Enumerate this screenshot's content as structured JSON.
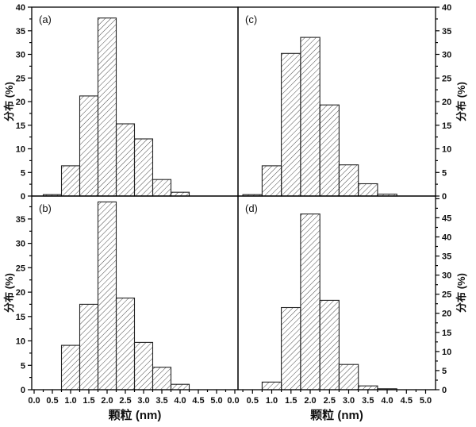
{
  "figure": {
    "background": "#ffffff",
    "axis_color": "#000000",
    "bar_outline_color": "#222222",
    "hatch_color": "#4a4a4a",
    "x_axis_title": "颗粒 (nm)",
    "y_axis_title": "分布 (%)"
  },
  "chart_data": [
    {
      "panel": "a",
      "panel_label": "(a)",
      "type": "bar",
      "bin_width": 0.5,
      "bin_centers": [
        0.5,
        1.0,
        1.5,
        2.0,
        2.5,
        3.0,
        3.5,
        4.0
      ],
      "values": [
        0.3,
        6.4,
        21.2,
        37.7,
        15.3,
        12.1,
        3.5,
        0.8
      ],
      "ylabel": "分布 (%)",
      "yaxis_side": "left",
      "ylim": [
        0,
        40
      ],
      "ytick_labels": [
        0,
        5,
        10,
        15,
        20,
        25,
        30,
        35,
        40
      ],
      "xlim": [
        0,
        5.6
      ],
      "show_x_labels": false,
      "xtick_labels": []
    },
    {
      "panel": "b",
      "panel_label": "(b)",
      "type": "bar",
      "bin_width": 0.5,
      "bin_centers": [
        1.0,
        1.5,
        2.0,
        2.5,
        3.0,
        3.5,
        4.0
      ],
      "values": [
        9.1,
        17.5,
        38.5,
        18.8,
        9.7,
        4.6,
        1.1
      ],
      "ylabel": "分布 (%)",
      "yaxis_side": "left",
      "ylim": [
        0,
        39.7
      ],
      "ytick_labels": [
        0,
        5,
        10,
        15,
        20,
        25,
        30,
        35
      ],
      "xlim": [
        0,
        5.6
      ],
      "show_x_labels": true,
      "xlabel": "颗粒 (nm)",
      "xtick_labels": [
        "0.0",
        "0.5",
        "1.0",
        "1.5",
        "2.0",
        "2.5",
        "3.0",
        "3.5",
        "4.0",
        "4.5",
        "5.0"
      ]
    },
    {
      "panel": "c",
      "panel_label": "(c)",
      "type": "bar",
      "bin_width": 0.5,
      "bin_centers": [
        0.5,
        1.0,
        1.5,
        2.0,
        2.5,
        3.0,
        3.5,
        4.0
      ],
      "values": [
        0.3,
        6.4,
        30.2,
        33.6,
        19.3,
        6.6,
        2.6,
        0.4
      ],
      "ylabel": "分布 (%)",
      "yaxis_side": "right",
      "ylim": [
        0,
        40
      ],
      "ytick_labels": [
        0,
        5,
        10,
        15,
        20,
        25,
        30,
        35,
        40
      ],
      "xlim": [
        0,
        5.25
      ],
      "show_x_labels": false,
      "xtick_labels": []
    },
    {
      "panel": "d",
      "panel_label": "(d)",
      "type": "bar",
      "bin_width": 0.5,
      "bin_centers": [
        1.0,
        1.5,
        2.0,
        2.5,
        3.0,
        3.5,
        4.0
      ],
      "values": [
        2.0,
        21.5,
        46.0,
        23.4,
        6.6,
        1.0,
        0.25
      ],
      "ylabel": "分布 (%)",
      "yaxis_side": "right",
      "ylim": [
        0,
        50.7
      ],
      "ytick_labels": [
        0,
        5,
        10,
        15,
        20,
        25,
        30,
        35,
        40,
        45
      ],
      "xlim": [
        0,
        5.25
      ],
      "show_x_labels": true,
      "xlabel": "颗粒 (nm)",
      "xtick_labels": [
        "0.0",
        "0.5",
        "1.0",
        "1.5",
        "2.0",
        "2.5",
        "3.0",
        "3.5",
        "4.0",
        "4.5",
        "5.0"
      ]
    }
  ]
}
